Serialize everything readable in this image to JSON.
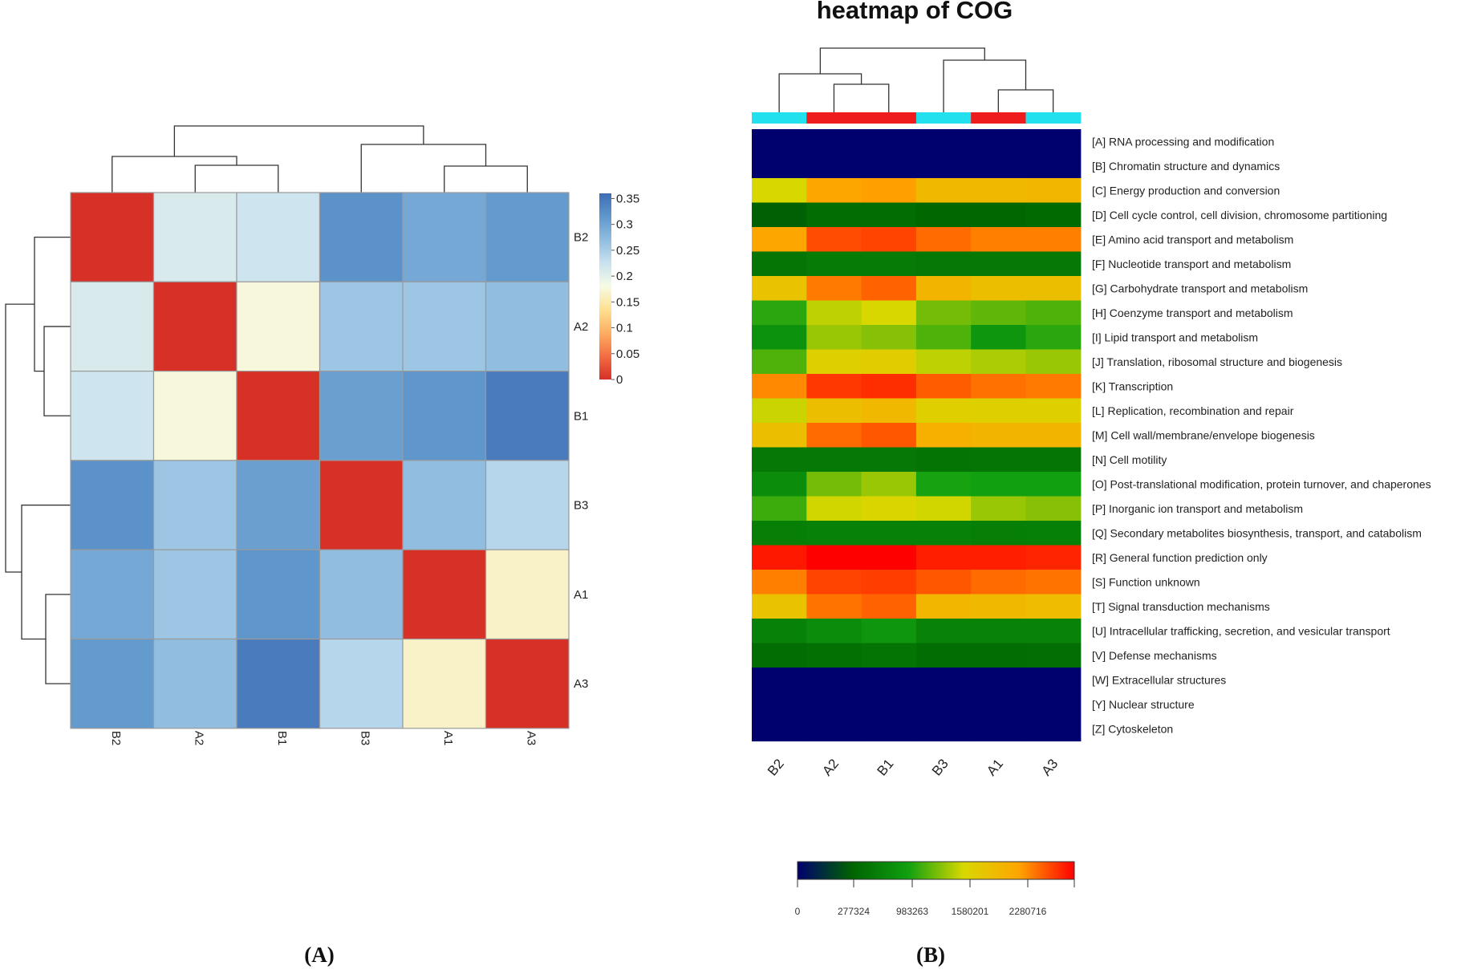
{
  "chart_data": [
    {
      "type": "heatmap",
      "panel_label": "(A)",
      "title": "",
      "samples": [
        "B2",
        "A2",
        "B1",
        "B3",
        "A1",
        "A3"
      ],
      "rows": [
        "B2",
        "A2",
        "B1",
        "B3",
        "A1",
        "A3"
      ],
      "values": [
        [
          0.0,
          0.21,
          0.22,
          0.32,
          0.295,
          0.31
        ],
        [
          0.21,
          0.0,
          0.175,
          0.26,
          0.26,
          0.27
        ],
        [
          0.22,
          0.175,
          0.0,
          0.305,
          0.315,
          0.345
        ],
        [
          0.32,
          0.26,
          0.305,
          0.0,
          0.27,
          0.24
        ],
        [
          0.295,
          0.26,
          0.315,
          0.27,
          0.0,
          0.165
        ],
        [
          0.31,
          0.27,
          0.345,
          0.24,
          0.165,
          0.0
        ]
      ],
      "colorbar": {
        "ticks": [
          "0.35",
          "0.3",
          "0.25",
          "0.2",
          "0.15",
          "0.1",
          "0.05",
          "0"
        ],
        "range": [
          0,
          0.36
        ],
        "colors": [
          "#d73027",
          "#f46d43",
          "#fdae61",
          "#fee090",
          "#f6fbe4",
          "#c9e2f0",
          "#90bde0",
          "#5f97cc",
          "#3f6db4"
        ]
      },
      "column_labels": [
        "B2",
        "A2",
        "B1",
        "B3",
        "A1",
        "A3"
      ],
      "row_labels": [
        "B2",
        "A2",
        "B1",
        "B3",
        "A1",
        "A3"
      ]
    },
    {
      "type": "heatmap",
      "panel_label": "(B)",
      "title": "heatmap of COG",
      "samples": [
        "B2",
        "A2",
        "B1",
        "B3",
        "A1",
        "A3"
      ],
      "group_bar": [
        "cyan",
        "red",
        "red",
        "cyan",
        "red",
        "cyan"
      ],
      "group_colors": {
        "cyan": "#22e0ee",
        "red": "#ee1c1c"
      },
      "categories": [
        "[A] RNA processing and modification",
        "[B] Chromatin structure and dynamics",
        "[C] Energy production and conversion",
        "[D] Cell cycle control, cell division, chromosome partitioning",
        "[E] Amino acid transport and metabolism",
        "[F] Nucleotide transport and metabolism",
        "[G] Carbohydrate transport and metabolism",
        "[H] Coenzyme transport and metabolism",
        "[I] Lipid transport and metabolism",
        "[J] Translation, ribosomal structure and biogenesis",
        "[K] Transcription",
        "[L] Replication, recombination and repair",
        "[M] Cell wall/membrane/envelope biogenesis",
        "[N] Cell motility",
        "[O] Post-translational modification, protein turnover, and chaperones",
        "[P] Inorganic ion transport and metabolism",
        "[Q] Secondary metabolites biosynthesis, transport, and catabolism",
        "[R] General function prediction only",
        "[S] Function unknown",
        "[T] Signal transduction mechanisms",
        "[U] Intracellular trafficking, secretion, and vesicular transport",
        "[V] Defense mechanisms",
        "[W] Extracellular structures",
        "[Y] Nuclear structure",
        "[Z] Cytoskeleton"
      ],
      "values": [
        [
          0,
          0,
          0,
          0,
          0,
          0
        ],
        [
          0,
          0,
          0,
          0,
          0,
          0
        ],
        [
          1620000,
          2150000,
          2180000,
          1950000,
          1950000,
          1980000
        ],
        [
          520000,
          620000,
          620000,
          580000,
          580000,
          590000
        ],
        [
          2150000,
          2450000,
          2480000,
          2350000,
          2280000,
          2280000
        ],
        [
          700000,
          750000,
          750000,
          720000,
          720000,
          720000
        ],
        [
          1850000,
          2300000,
          2380000,
          2000000,
          1900000,
          1880000
        ],
        [
          1150000,
          1550000,
          1620000,
          1350000,
          1300000,
          1250000
        ],
        [
          950000,
          1450000,
          1400000,
          1250000,
          1000000,
          1150000
        ],
        [
          1250000,
          1700000,
          1750000,
          1550000,
          1500000,
          1450000
        ],
        [
          2250000,
          2520000,
          2550000,
          2400000,
          2330000,
          2300000
        ],
        [
          1580000,
          1900000,
          1950000,
          1720000,
          1700000,
          1700000
        ],
        [
          1880000,
          2350000,
          2420000,
          2050000,
          2000000,
          2000000
        ],
        [
          720000,
          720000,
          720000,
          690000,
          700000,
          700000
        ],
        [
          900000,
          1350000,
          1450000,
          1100000,
          1080000,
          1080000
        ],
        [
          1200000,
          1600000,
          1650000,
          1600000,
          1450000,
          1400000
        ],
        [
          780000,
          800000,
          800000,
          800000,
          780000,
          790000
        ],
        [
          2620000,
          2700000,
          2700000,
          2600000,
          2600000,
          2580000
        ],
        [
          2280000,
          2480000,
          2500000,
          2420000,
          2350000,
          2320000
        ],
        [
          1850000,
          2320000,
          2380000,
          1980000,
          1950000,
          1920000
        ],
        [
          800000,
          900000,
          1000000,
          820000,
          820000,
          820000
        ],
        [
          620000,
          650000,
          680000,
          620000,
          620000,
          630000
        ],
        [
          0,
          0,
          0,
          0,
          0,
          0
        ],
        [
          0,
          0,
          0,
          0,
          0,
          0
        ],
        [
          0,
          0,
          0,
          0,
          0,
          0
        ]
      ],
      "colorbar": {
        "ticks": [
          "0",
          "277324",
          "983263",
          "1580201",
          "2280716"
        ],
        "range": [
          0,
          2700000
        ],
        "colors": [
          "#00006e",
          "#006400",
          "#10a010",
          "#d8d800",
          "#ffa500",
          "#ff0000"
        ]
      },
      "column_labels": [
        "B2",
        "A2",
        "B1",
        "B3",
        "A1",
        "A3"
      ]
    }
  ]
}
